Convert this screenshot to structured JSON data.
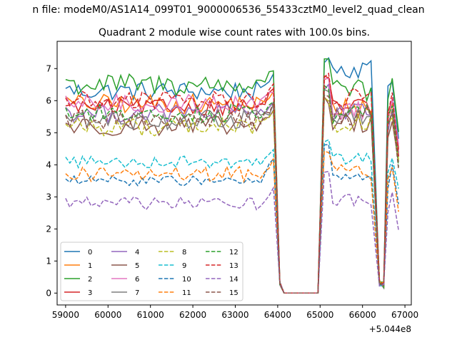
{
  "suptitle": "n file: modeM0/AS1A14_099T01_9000006536_55433cztM0_level2_quad_clean",
  "chart_data": {
    "type": "line",
    "title": "Quadrant 2 module wise count rates with 100.0s bins.",
    "xlabel": "",
    "ylabel": "",
    "x_offset_label": "+5.044e8",
    "xlim": [
      58800,
      67150
    ],
    "ylim": [
      -0.37,
      7.85
    ],
    "xticks": [
      59000,
      60000,
      61000,
      62000,
      63000,
      64000,
      65000,
      66000,
      67000
    ],
    "xtick_labels": [
      "59000",
      "60000",
      "61000",
      "62000",
      "63000",
      "64000",
      "65000",
      "66000",
      "67000"
    ],
    "yticks": [
      0,
      1,
      2,
      3,
      4,
      5,
      6,
      7
    ],
    "ytick_labels": [
      "0",
      "1",
      "2",
      "3",
      "4",
      "5",
      "6",
      "7"
    ],
    "grid": false,
    "legend_position": "lower-left",
    "legend_columns": 4,
    "series": [
      {
        "name": "0",
        "color": "#1f77b4",
        "dash": "solid",
        "base": 6.3,
        "amp": 0.3,
        "peak": 6.9,
        "gap2": 7.0
      },
      {
        "name": "1",
        "color": "#ff7f0e",
        "dash": "solid",
        "base": 5.9,
        "amp": 0.3,
        "peak": 6.2,
        "gap2": 5.8
      },
      {
        "name": "2",
        "color": "#2ca02c",
        "dash": "solid",
        "base": 6.5,
        "amp": 0.35,
        "peak": 7.0,
        "gap2": 6.3
      },
      {
        "name": "3",
        "color": "#d62728",
        "dash": "solid",
        "base": 5.8,
        "amp": 0.25,
        "peak": 6.3,
        "gap2": 5.8
      },
      {
        "name": "4",
        "color": "#9467bd",
        "dash": "solid",
        "base": 5.6,
        "amp": 0.3,
        "peak": 6.0,
        "gap2": 5.6
      },
      {
        "name": "5",
        "color": "#8c564b",
        "dash": "solid",
        "base": 5.2,
        "amp": 0.3,
        "peak": 5.6,
        "gap2": 5.3
      },
      {
        "name": "6",
        "color": "#e377c2",
        "dash": "solid",
        "base": 5.9,
        "amp": 0.3,
        "peak": 6.3,
        "gap2": 5.7
      },
      {
        "name": "7",
        "color": "#7f7f7f",
        "dash": "solid",
        "base": 5.4,
        "amp": 0.3,
        "peak": 5.8,
        "gap2": 5.5
      },
      {
        "name": "8",
        "color": "#bcbd22",
        "dash": "dashed",
        "base": 5.2,
        "amp": 0.3,
        "peak": 5.7,
        "gap2": 5.3
      },
      {
        "name": "9",
        "color": "#17becf",
        "dash": "dashed",
        "base": 4.1,
        "amp": 0.2,
        "peak": 4.4,
        "gap2": 4.2
      },
      {
        "name": "10",
        "color": "#1f77b4",
        "dash": "dashed",
        "base": 3.5,
        "amp": 0.15,
        "peak": 4.2,
        "gap2": 3.6
      },
      {
        "name": "11",
        "color": "#ff7f0e",
        "dash": "dashed",
        "base": 3.7,
        "amp": 0.25,
        "peak": 4.1,
        "gap2": 3.8
      },
      {
        "name": "12",
        "color": "#2ca02c",
        "dash": "dashed",
        "base": 5.6,
        "amp": 0.3,
        "peak": 6.0,
        "gap2": 5.6
      },
      {
        "name": "13",
        "color": "#d62728",
        "dash": "dashed",
        "base": 6.0,
        "amp": 0.3,
        "peak": 6.4,
        "gap2": 6.1
      },
      {
        "name": "14",
        "color": "#9467bd",
        "dash": "dashed",
        "base": 2.8,
        "amp": 0.2,
        "peak": 3.3,
        "gap2": 2.9
      },
      {
        "name": "15",
        "color": "#8c564b",
        "dash": "dashed",
        "base": 5.4,
        "amp": 0.3,
        "peak": 5.8,
        "gap2": 5.5
      }
    ],
    "segments": {
      "bin_seconds": 100,
      "active1": [
        59000,
        63900
      ],
      "drop": [
        64050,
        64100
      ],
      "zero": [
        64150,
        64950
      ],
      "active2": [
        65100,
        66250
      ],
      "dip": [
        66400,
        66500
      ],
      "active3": [
        66600,
        66850
      ]
    }
  }
}
